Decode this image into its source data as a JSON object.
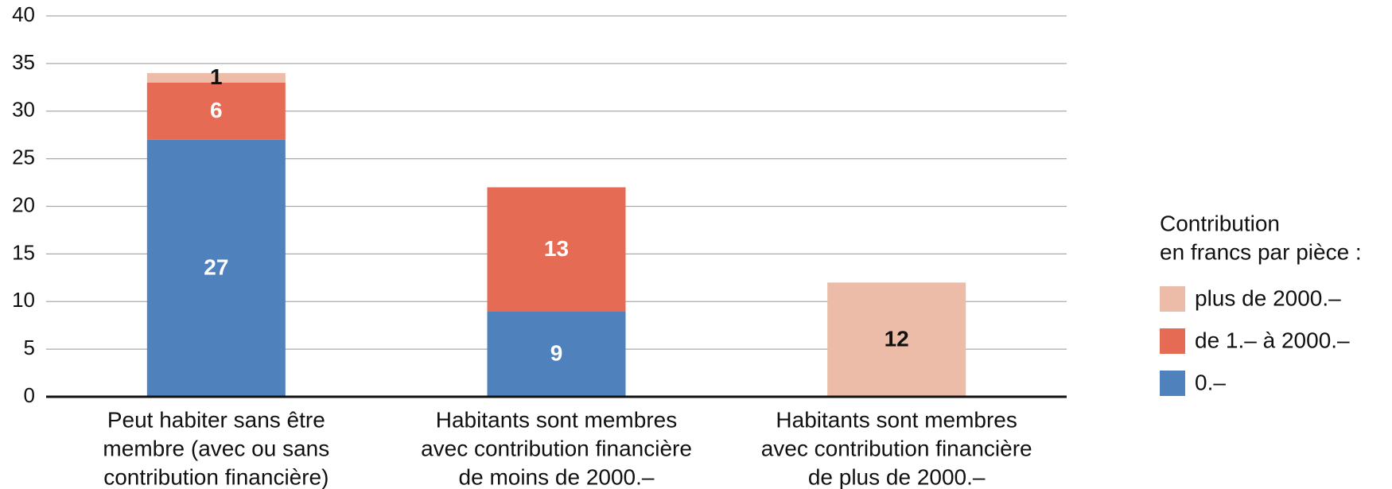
{
  "chart_data": {
    "type": "stacked_bar",
    "categories": [
      [
        "Peut habiter sans être",
        "membre (avec ou sans",
        "contribution financière)"
      ],
      [
        "Habitants sont membres",
        "avec contribution financière",
        "de moins de 2000.–"
      ],
      [
        "Habitants sont membres",
        "avec contribution financière",
        "de plus de 2000.–"
      ]
    ],
    "series": [
      {
        "name": "0.–",
        "color": "#4f81bd",
        "label_color": "#ffffff",
        "values": [
          27,
          9,
          null
        ]
      },
      {
        "name": "de 1.– à 2000.–",
        "color": "#e66b55",
        "label_color": "#ffffff",
        "values": [
          6,
          13,
          null
        ]
      },
      {
        "name": "plus de 2000.–",
        "color": "#ecbca8",
        "label_color": "#111111",
        "values": [
          1,
          null,
          12
        ]
      }
    ],
    "legend_title": [
      "Contribution",
      "en francs par pièce :"
    ],
    "legend_position": "right",
    "ylim": [
      0,
      40
    ],
    "yticks": [
      0,
      5,
      10,
      15,
      20,
      25,
      30,
      35,
      40
    ],
    "grid": true
  }
}
